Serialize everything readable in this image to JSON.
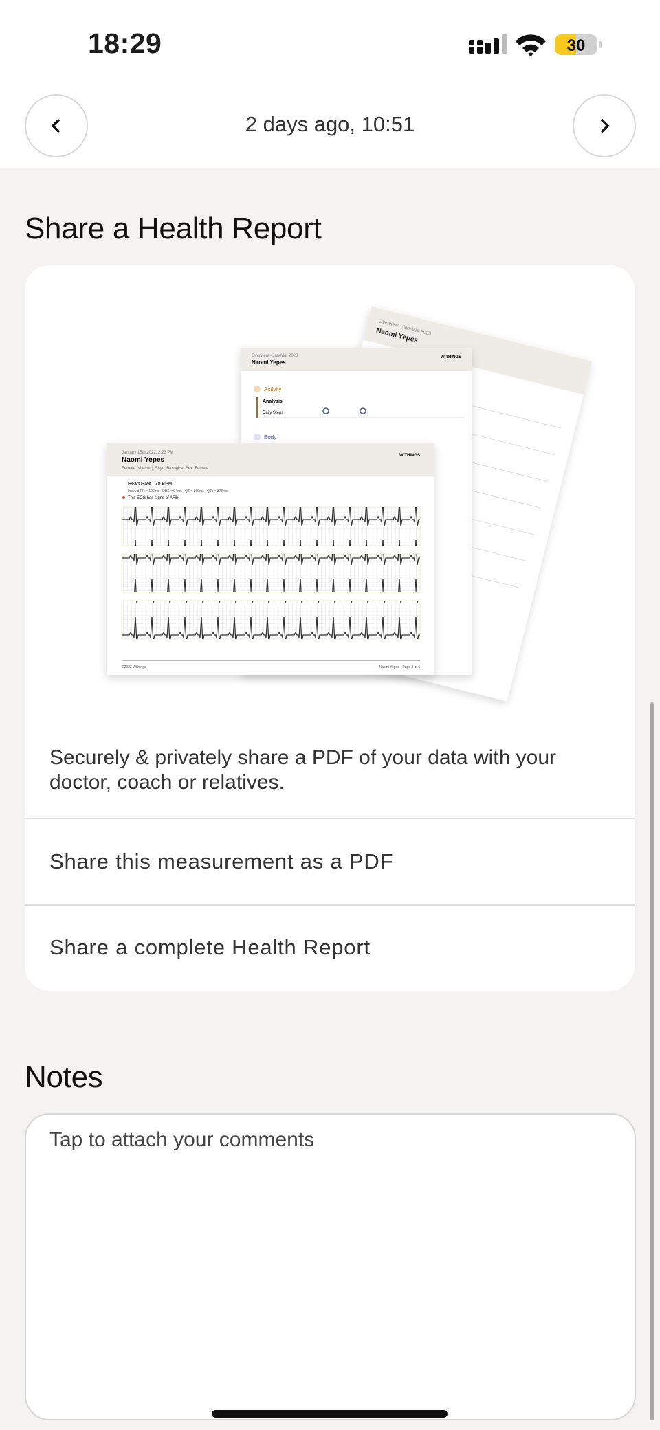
{
  "status_bar": {
    "time": "18:29",
    "battery": "30"
  },
  "nav": {
    "title": "2 days ago, 10:51"
  },
  "share": {
    "title": "Share a Health Report",
    "preview": {
      "date": "January 15th 2022, 2:23 PM",
      "name": "Naomi Yepes",
      "details": "Female (she/her), 58yo, Biological Sex: Female",
      "brand": "WITHINGS",
      "heart_rate": "Heart Rate : 79 BPM",
      "intervals": "Interval PR = 190ms - QRS = 94ms - QT = 369ms - QTc = 378ms",
      "finding": "This ECG has signs of AFib",
      "copyright": "©2023 Withings",
      "page": "Naomi Yepes - Page 3 of 6",
      "overview": "Overview - Jan-Mar 2023",
      "activity": "Activity",
      "analysis": "Analysis",
      "daily_steps": "Daily Steps",
      "body": "Body"
    },
    "description": "Securely & privately share a PDF of your data with your doctor, coach or relatives.",
    "options": [
      "Share this measurement as a PDF",
      "Share a complete Health Report"
    ]
  },
  "notes": {
    "title": "Notes",
    "placeholder": "Tap to attach your comments"
  }
}
